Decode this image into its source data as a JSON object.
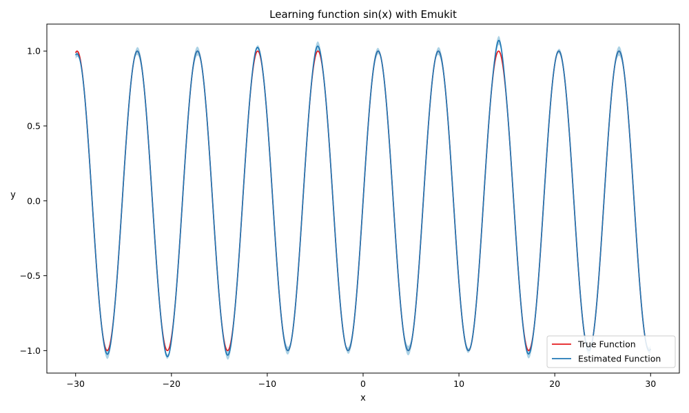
{
  "chart_data": {
    "type": "line",
    "title": "Learning function sin(x) with Emukit",
    "xlabel": "x",
    "ylabel": "y",
    "xlim": [
      -33,
      33
    ],
    "ylim": [
      -1.15,
      1.18
    ],
    "xticks": [
      -30,
      -20,
      -10,
      0,
      10,
      20,
      30
    ],
    "xtick_labels": [
      "−30",
      "−20",
      "−10",
      "0",
      "10",
      "20",
      "30"
    ],
    "yticks": [
      -1.0,
      -0.5,
      0.0,
      0.5,
      1.0
    ],
    "ytick_labels": [
      "−1.0",
      "−0.5",
      "0.0",
      "0.5",
      "1.0"
    ],
    "grid": false,
    "legend_position": "lower-right",
    "x_range": [
      -30,
      30
    ],
    "series": [
      {
        "name": "True Function",
        "color": "#e41a1c",
        "function": "sin(x)"
      },
      {
        "name": "Estimated Function",
        "color": "#1f77b4",
        "function": "sin(x)",
        "notable_deviations": [
          {
            "x": -29.8,
            "y": 0.98
          },
          {
            "x": -26.6,
            "y": -1.02
          },
          {
            "x": -20.4,
            "y": -1.04
          },
          {
            "x": -14.1,
            "y": -1.03
          },
          {
            "x": -11.1,
            "y": 1.02
          },
          {
            "x": -4.8,
            "y": 1.03
          },
          {
            "x": 14.2,
            "y": 1.07
          },
          {
            "x": 17.2,
            "y": -1.02
          }
        ],
        "uncertainty_band_color": "#9ecae1"
      }
    ]
  }
}
